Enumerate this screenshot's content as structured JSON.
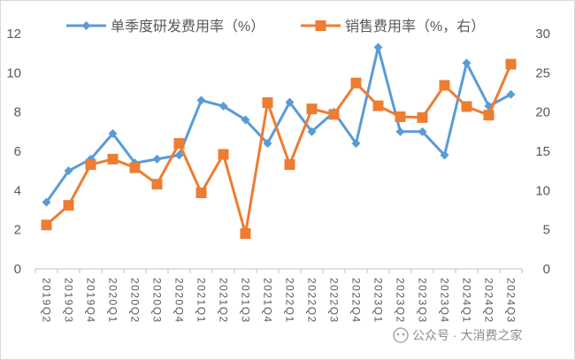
{
  "chart_data": {
    "type": "line",
    "categories": [
      "2019Q2",
      "2019Q3",
      "2019Q4",
      "2020Q1",
      "2020Q2",
      "2020Q3",
      "2020Q4",
      "2021Q1",
      "2021Q2",
      "2021Q3",
      "2021Q4",
      "2022Q1",
      "2022Q2",
      "2022Q3",
      "2022Q4",
      "2023Q1",
      "2023Q2",
      "2023Q3",
      "2023Q4",
      "2024Q1",
      "2024Q2",
      "2024Q3"
    ],
    "series": [
      {
        "name": "单季度研发费用率（%）",
        "axis": "left",
        "color": "#5b9bd5",
        "marker": "diamond",
        "values": [
          3.4,
          5.0,
          5.6,
          6.9,
          5.4,
          5.6,
          5.8,
          8.6,
          8.3,
          7.6,
          6.4,
          8.5,
          7.0,
          8.0,
          6.4,
          11.3,
          7.0,
          7.0,
          5.8,
          10.5,
          8.3,
          8.9
        ]
      },
      {
        "name": "销售费用率（%，右）",
        "axis": "right",
        "color": "#ed7d31",
        "marker": "square",
        "values": [
          5.6,
          8.1,
          13.3,
          14.0,
          12.9,
          10.8,
          16.0,
          9.7,
          14.6,
          4.5,
          21.2,
          13.3,
          20.4,
          19.7,
          23.7,
          20.8,
          19.4,
          19.3,
          23.4,
          20.7,
          19.6,
          26.1
        ]
      }
    ],
    "yaxis_left": {
      "min": 0,
      "max": 12,
      "step": 2,
      "ticks": [
        "0",
        "2",
        "4",
        "6",
        "8",
        "10",
        "12"
      ]
    },
    "yaxis_right": {
      "min": 0,
      "max": 30,
      "step": 5,
      "ticks": [
        "0",
        "5",
        "10",
        "15",
        "20",
        "25",
        "30"
      ]
    },
    "legend_position": "top",
    "grid": false
  },
  "watermark": "公众号 · 大消费之家"
}
